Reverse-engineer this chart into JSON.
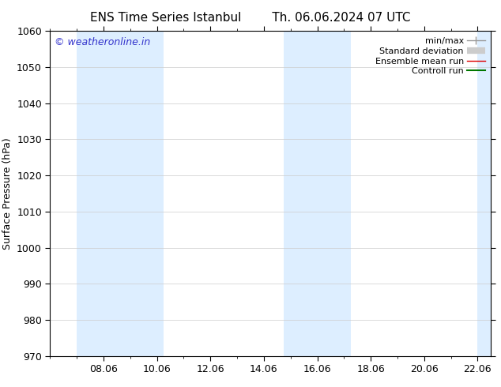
{
  "title_left": "ENS Time Series Istanbul",
  "title_right": "Th. 06.06.2024 07 UTC",
  "ylabel": "Surface Pressure (hPa)",
  "ylim": [
    970,
    1060
  ],
  "yticks": [
    970,
    980,
    990,
    1000,
    1010,
    1020,
    1030,
    1040,
    1050,
    1060
  ],
  "xlim_start": 6.0,
  "xlim_end": 22.5,
  "xtick_positions": [
    8,
    10,
    12,
    14,
    16,
    18,
    20,
    22
  ],
  "xtick_labels": [
    "08.06",
    "10.06",
    "12.06",
    "14.06",
    "16.06",
    "18.06",
    "20.06",
    "22.06"
  ],
  "shaded_bands": [
    {
      "x_start": 7.0,
      "x_end": 10.25
    },
    {
      "x_start": 14.75,
      "x_end": 17.25
    },
    {
      "x_start": 22.0,
      "x_end": 22.5
    }
  ],
  "band_color": "#ddeeff",
  "background_color": "#ffffff",
  "watermark_text": "© weatheronline.in",
  "watermark_color": "#3333cc",
  "legend_items": [
    {
      "label": "min/max",
      "color": "#999999",
      "lw": 1,
      "type": "minmax"
    },
    {
      "label": "Standard deviation",
      "color": "#cccccc",
      "lw": 6,
      "type": "band"
    },
    {
      "label": "Ensemble mean run",
      "color": "#dd0000",
      "lw": 1,
      "type": "line"
    },
    {
      "label": "Controll run",
      "color": "#007700",
      "lw": 1.5,
      "type": "line"
    }
  ],
  "grid_color": "#cccccc",
  "title_fontsize": 11,
  "ylabel_fontsize": 9,
  "tick_labelsize": 9,
  "watermark_fontsize": 9,
  "legend_fontsize": 8,
  "figsize": [
    6.34,
    4.9
  ],
  "dpi": 100
}
